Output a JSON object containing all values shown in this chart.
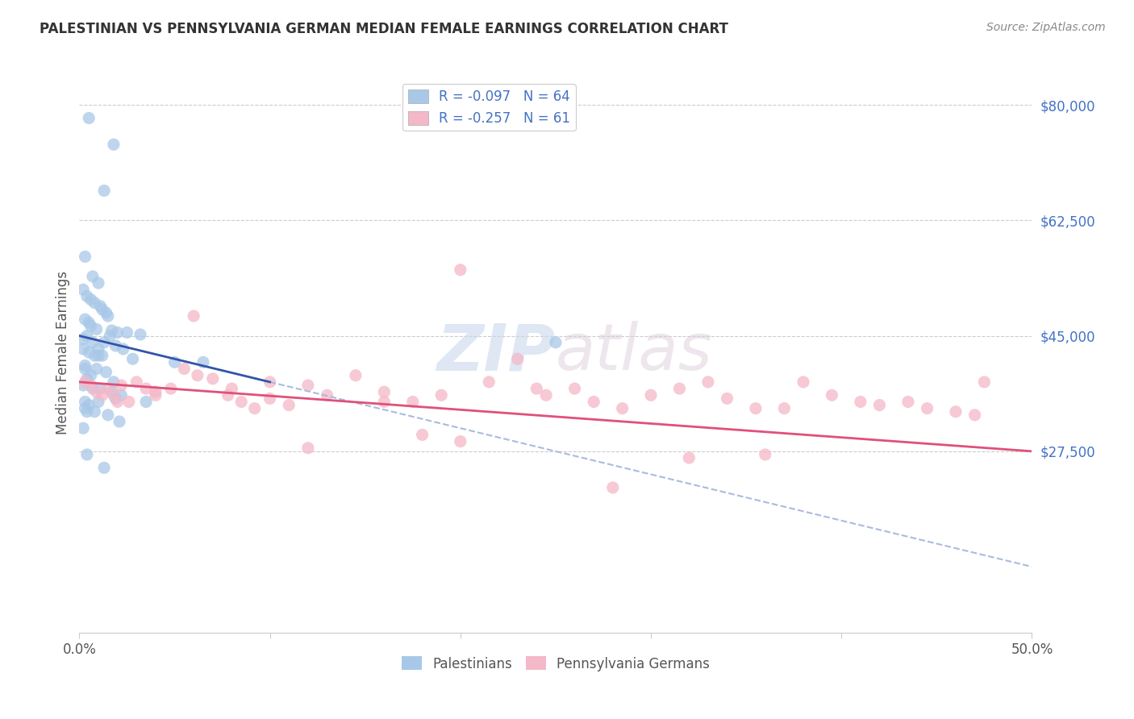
{
  "title": "PALESTINIAN VS PENNSYLVANIA GERMAN MEDIAN FEMALE EARNINGS CORRELATION CHART",
  "source": "Source: ZipAtlas.com",
  "ylabel": "Median Female Earnings",
  "r_palestinian": -0.097,
  "n_palestinian": 64,
  "r_pagerman": -0.257,
  "n_pagerman": 61,
  "color_palestinian": "#a8c8e8",
  "color_pagerman": "#f4b8c8",
  "color_palestinian_line": "#3355aa",
  "color_pagerman_line": "#e0507a",
  "color_trendline_dashed": "#aabbdd",
  "palestinian_x": [
    0.5,
    1.8,
    1.3,
    0.3,
    0.7,
    1.0,
    0.2,
    0.4,
    0.6,
    0.8,
    1.1,
    1.2,
    1.4,
    1.5,
    0.3,
    0.5,
    0.6,
    0.9,
    1.7,
    2.0,
    2.5,
    3.2,
    1.6,
    0.4,
    0.2,
    0.7,
    1.3,
    1.9,
    2.3,
    0.2,
    1.0,
    0.5,
    0.8,
    1.0,
    1.2,
    2.8,
    5.0,
    6.5,
    0.3,
    0.3,
    0.9,
    1.4,
    0.6,
    0.4,
    1.8,
    0.2,
    0.7,
    1.1,
    1.7,
    2.2,
    0.3,
    1.0,
    0.5,
    0.4,
    0.8,
    1.5,
    2.1,
    0.2,
    0.4,
    1.3,
    1.9,
    3.5,
    0.3,
    25.0
  ],
  "palestinian_y": [
    78000,
    74000,
    67000,
    57000,
    54000,
    53000,
    52000,
    51000,
    50500,
    50000,
    49500,
    49000,
    48500,
    48000,
    47500,
    47000,
    46500,
    46000,
    45800,
    45500,
    45500,
    45200,
    45000,
    45000,
    44500,
    44000,
    44000,
    43500,
    43000,
    43000,
    43000,
    42500,
    42000,
    42000,
    42000,
    41500,
    41000,
    41000,
    40500,
    40000,
    40000,
    39500,
    39000,
    38500,
    38000,
    37500,
    37000,
    37000,
    36500,
    36000,
    35000,
    35000,
    34500,
    33500,
    33500,
    33000,
    32000,
    31000,
    27000,
    25000,
    35500,
    35000,
    34000,
    44000
  ],
  "pagerman_x": [
    0.3,
    0.6,
    0.9,
    1.2,
    1.5,
    1.8,
    2.2,
    2.6,
    3.0,
    3.5,
    4.0,
    4.8,
    5.5,
    6.2,
    7.0,
    7.8,
    8.5,
    9.2,
    10.0,
    11.0,
    12.0,
    13.0,
    14.5,
    16.0,
    17.5,
    19.0,
    20.0,
    21.5,
    23.0,
    24.5,
    26.0,
    27.0,
    28.5,
    30.0,
    31.5,
    33.0,
    34.0,
    35.5,
    37.0,
    38.0,
    39.5,
    41.0,
    42.0,
    43.5,
    44.5,
    46.0,
    47.0,
    47.5,
    36.0,
    32.0,
    28.0,
    24.0,
    20.0,
    16.0,
    12.0,
    8.0,
    4.0,
    2.0,
    6.0,
    10.0,
    18.0
  ],
  "pagerman_y": [
    38000,
    37500,
    36500,
    36000,
    37000,
    36000,
    37500,
    35000,
    38000,
    37000,
    36500,
    37000,
    40000,
    39000,
    38500,
    36000,
    35000,
    34000,
    35500,
    34500,
    37500,
    36000,
    39000,
    36500,
    35000,
    36000,
    55000,
    38000,
    41500,
    36000,
    37000,
    35000,
    34000,
    36000,
    37000,
    38000,
    35500,
    34000,
    34000,
    38000,
    36000,
    35000,
    34500,
    35000,
    34000,
    33500,
    33000,
    38000,
    27000,
    26500,
    22000,
    37000,
    29000,
    35000,
    28000,
    37000,
    36000,
    35000,
    48000,
    38000,
    30000
  ],
  "xlim": [
    0,
    50
  ],
  "ylim": [
    0,
    85000
  ],
  "ytick_vals": [
    0,
    27500,
    45000,
    62500,
    80000
  ],
  "ytick_labels": [
    "",
    "$27,500",
    "$45,000",
    "$62,500",
    "$80,000"
  ],
  "xtick_vals": [
    0,
    10,
    20,
    30,
    40,
    50
  ],
  "xtick_labels": [
    "0.0%",
    "",
    "",
    "",
    "",
    "50.0%"
  ]
}
